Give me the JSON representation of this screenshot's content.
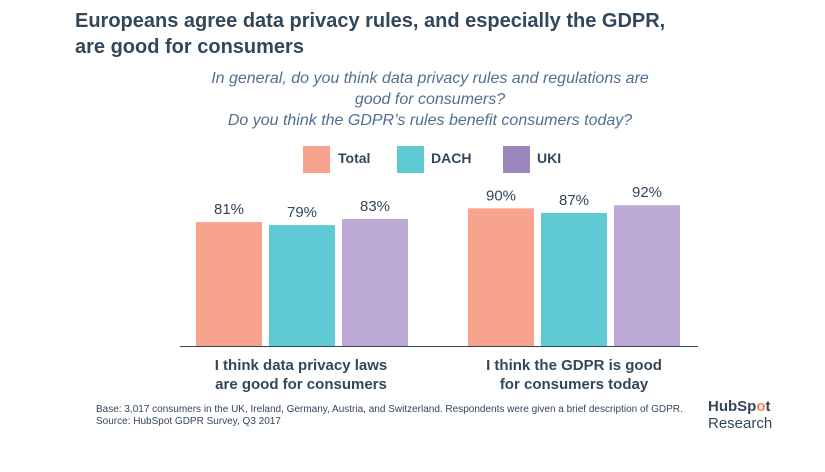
{
  "title_lines": [
    "Europeans agree data privacy rules, and especially the GDPR,",
    "are good for consumers"
  ],
  "subtitle_lines": [
    "In general, do you think data privacy rules and regulations are",
    "good for consumers?",
    "Do you think the GDPR’s rules benefit consumers today?"
  ],
  "chart_data": {
    "type": "bar",
    "categories": [
      "I think data privacy laws are good for consumers",
      "I think the GDPR is good for consumers today"
    ],
    "category_lines": [
      [
        "I think data privacy laws",
        "are good for consumers"
      ],
      [
        "I think the GDPR is good",
        "for consumers today"
      ]
    ],
    "series": [
      {
        "name": "Total",
        "values": [
          81,
          90
        ],
        "color": "#f8a38e"
      },
      {
        "name": "DACH",
        "values": [
          79,
          87
        ],
        "color": "#5fcad3"
      },
      {
        "name": "UKI",
        "values": [
          83,
          92
        ],
        "color": "#bca9d3"
      }
    ],
    "value_suffix": "%",
    "ylim": [
      0,
      100
    ],
    "grid": false,
    "legend_position": "top-center",
    "legend_colors": [
      "#f8a38e",
      "#5fcad3",
      "#9b87bd"
    ]
  },
  "footnote": {
    "base": "Base: 3,017 consumers in the UK, Ireland, Germany, Austria, and Switzerland. Respondents were given a brief description of GDPR.",
    "source": "Source: HubSpot GDPR Survey, Q3 2017"
  },
  "logo": {
    "brand": "HubSpot",
    "sub": "Research",
    "accent": "#ff7a59"
  }
}
